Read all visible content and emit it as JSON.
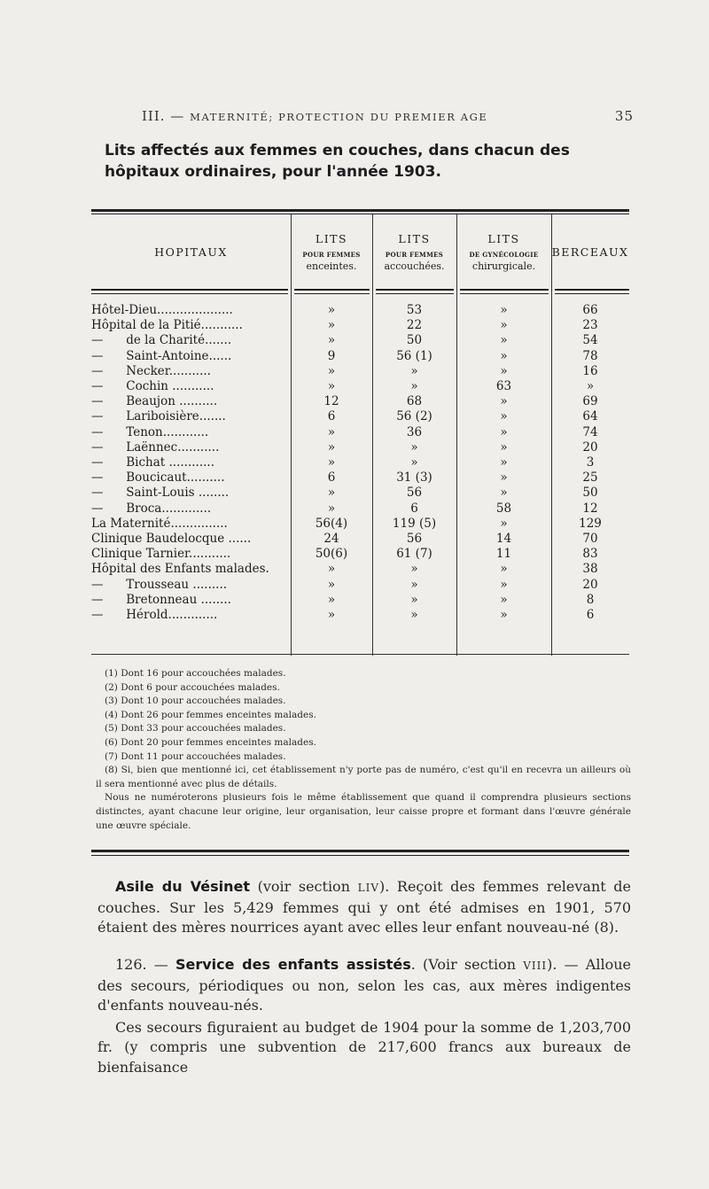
{
  "running_head": {
    "section": "III. —",
    "title": "MATERNITÉ; PROTECTION DU PREMIER AGE",
    "page_number": "35"
  },
  "table_title": "Lits affectés aux femmes en couches, dans chacun des hôpitaux ordinaires, pour l'année 1903.",
  "table": {
    "headers": [
      {
        "big": "HOPITAUX"
      },
      {
        "big": "LITS",
        "tiny": "POUR FEMMES",
        "sub": "enceintes."
      },
      {
        "big": "LITS",
        "tiny": "POUR FEMMES",
        "sub": "accouchées."
      },
      {
        "big": "LITS",
        "tiny": "DE GYNÉCOLOGIE",
        "sub": "chirurgicale."
      },
      {
        "big": "BERCEAUX"
      }
    ],
    "rows": [
      [
        "Hôtel-Dieu....................",
        "»",
        "53",
        "»",
        "66"
      ],
      [
        "Hôpital de la Pitié...........",
        "»",
        "22",
        "»",
        "23"
      ],
      [
        "—      de la Charité.......",
        "»",
        "50",
        "»",
        "54"
      ],
      [
        "—      Saint-Antoine......",
        "9",
        "56 (1)",
        "»",
        "78"
      ],
      [
        "—      Necker...........",
        "»",
        "»",
        "»",
        "16"
      ],
      [
        "—      Cochin ...........",
        "»",
        "»",
        "63",
        "»"
      ],
      [
        "—      Beaujon ..........",
        "12",
        "68",
        "»",
        "69"
      ],
      [
        "—      Lariboisière.......",
        "6",
        "56 (2)",
        "»",
        "64"
      ],
      [
        "—      Tenon............",
        "»",
        "36",
        "»",
        "74"
      ],
      [
        "—      Laënnec...........",
        "»",
        "»",
        "»",
        "20"
      ],
      [
        "—      Bichat ............",
        "»",
        "»",
        "»",
        "3"
      ],
      [
        "—      Boucicaut..........",
        "6",
        "31 (3)",
        "»",
        "25"
      ],
      [
        "—      Saint-Louis ........",
        "»",
        "56",
        "»",
        "50"
      ],
      [
        "—      Broca.............",
        "»",
        "6",
        "58",
        "12"
      ],
      [
        "La Maternité...............",
        "56(4)",
        "119 (5)",
        "»",
        "129"
      ],
      [
        "Clinique Baudelocque ......",
        "24",
        "56",
        "14",
        "70"
      ],
      [
        "Clinique Tarnier...........",
        "50(6)",
        "61 (7)",
        "11",
        "83"
      ],
      [
        "Hôpital des Enfants malades.",
        "»",
        "»",
        "»",
        "38"
      ],
      [
        "—      Trousseau .........",
        "»",
        "»",
        "»",
        "20"
      ],
      [
        "—      Bretonneau ........",
        "»",
        "»",
        "»",
        "8"
      ],
      [
        "—      Hérold.............",
        "»",
        "»",
        "»",
        "6"
      ]
    ]
  },
  "footnotes": [
    "(1) Dont 16 pour accouchées malades.",
    "(2) Dont 6 pour accouchées malades.",
    "(3) Dont 10 pour accouchées malades.",
    "(4) Dont 26 pour femmes enceintes malades.",
    "(5) Dont 33 pour accouchées malades.",
    "(6) Dont 20 pour femmes enceintes malades.",
    "(7) Dont 11 pour accouchées malades.",
    "(8) Si, bien que mentionné ici, cet établissement n'y porte pas de numéro, c'est qu'il en recevra un ailleurs où il sera mentionné avec plus de détails.",
    "Nous ne numéroterons plusieurs fois le même établissement que quand il comprendra plusieurs sections distinctes, ayant chacune leur origine, leur organisation, leur caisse propre et formant dans l'œuvre générale une œuvre spéciale."
  ],
  "body": {
    "p1_bold": "Asile du Vésinet",
    "p1_a": " (voir section ",
    "p1_sc": "LIV",
    "p1_b": "). Reçoit des femmes relevant de couches. Sur les 5,429 femmes qui y ont été admises en 1901, 570 étaient des mères nourrices ayant avec elles leur enfant nouveau-né (8).",
    "p2_num": "126. — ",
    "p2_bold": "Service des enfants assistés",
    "p2_a": ". (Voir section ",
    "p2_sc": "VIII",
    "p2_b": "). — Alloue des secours, périodiques ou non, selon les cas, aux mères indigentes d'enfants nouveau-nés.",
    "p3": "Ces secours figuraient au budget de 1904 pour la somme de 1,203,700 fr. (y compris une subvention de 217,600 francs aux bureaux de bienfaisance"
  }
}
